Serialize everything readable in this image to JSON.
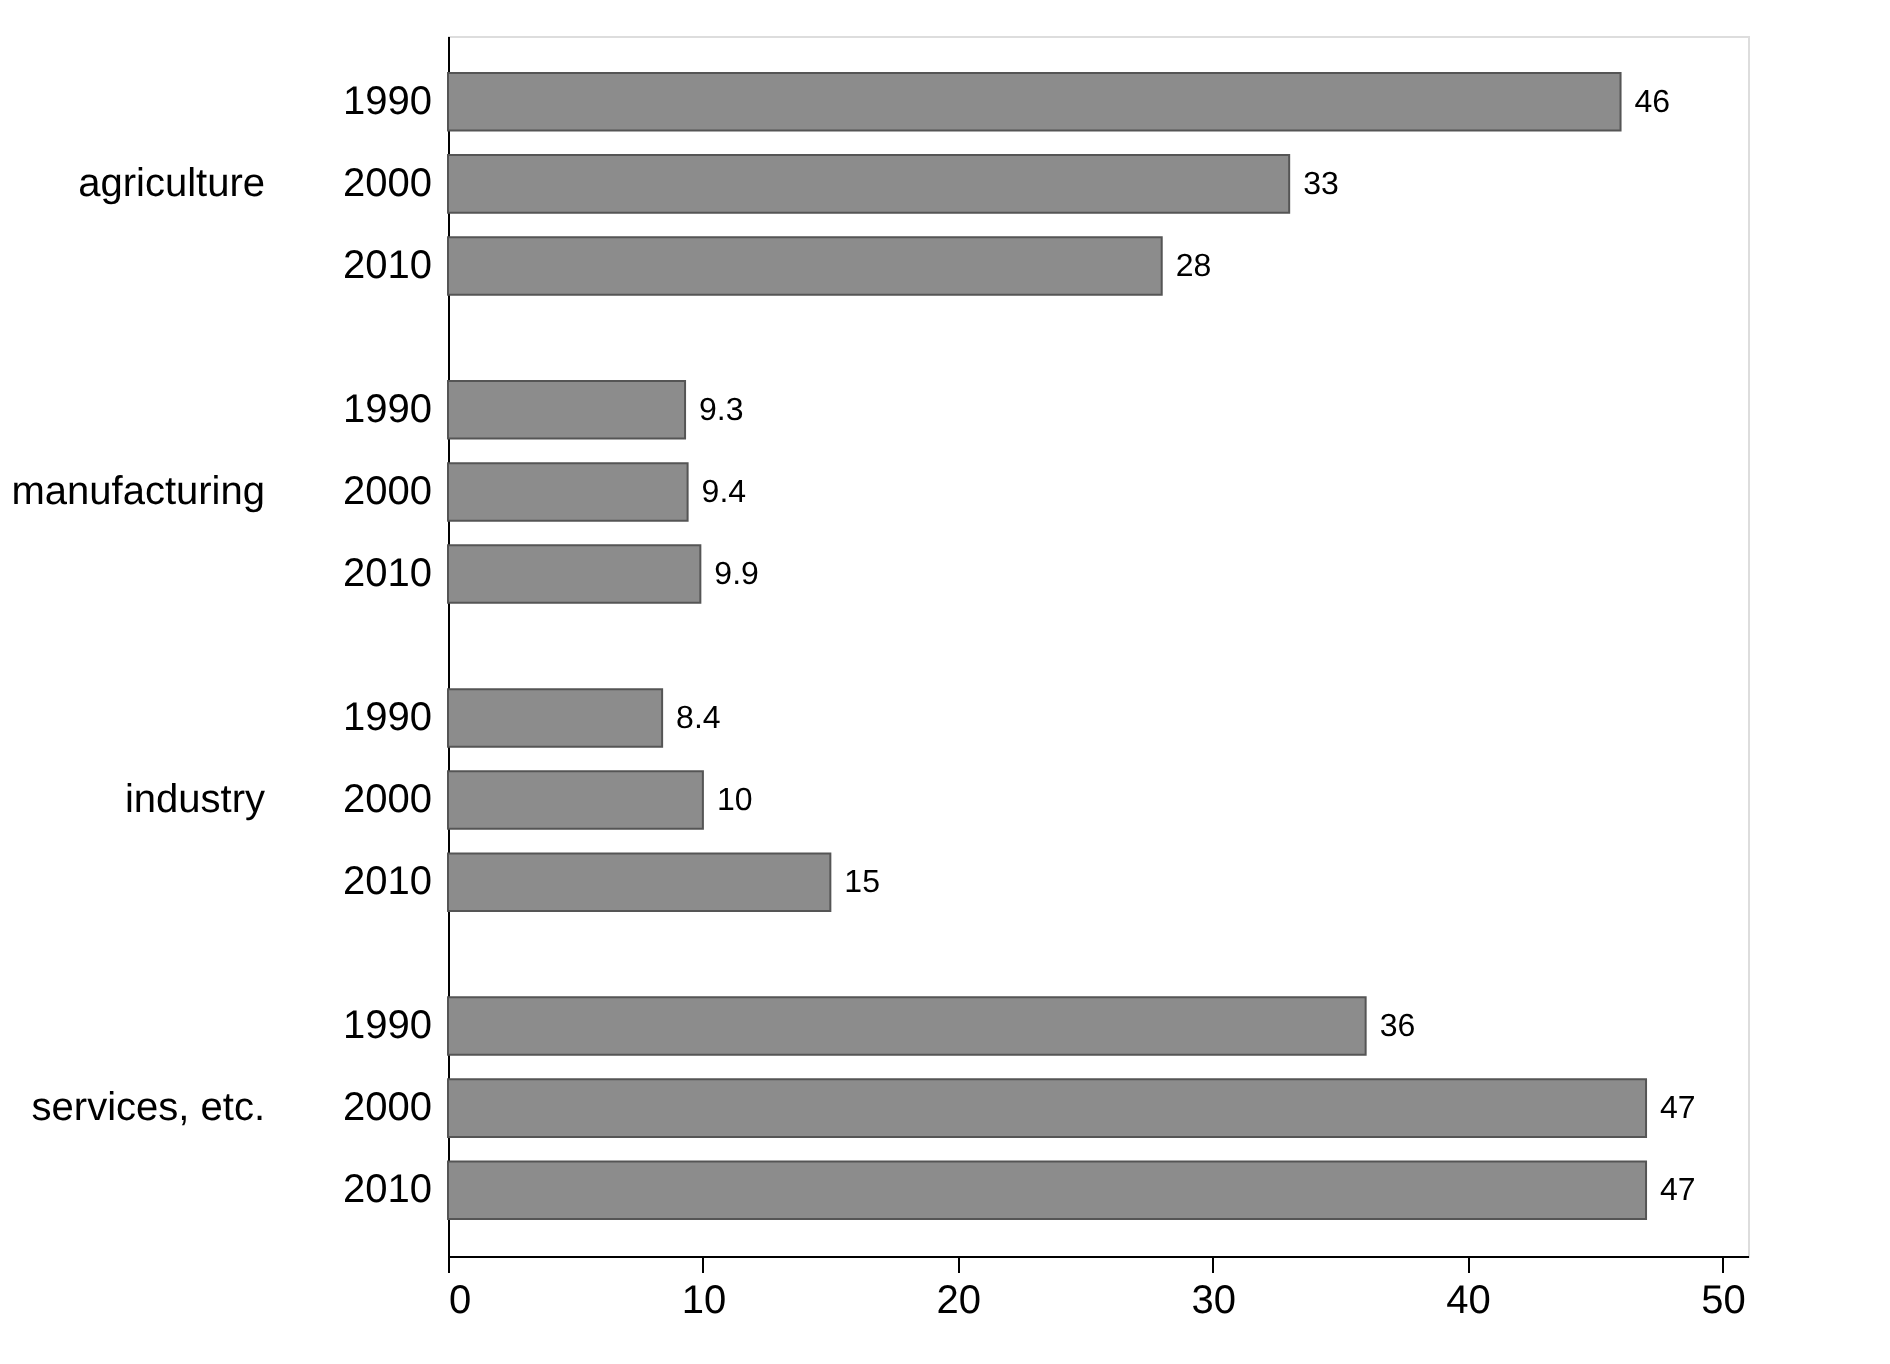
{
  "chart_data": {
    "type": "bar",
    "orientation": "horizontal",
    "categories": [
      "agriculture",
      "manufacturing",
      "industry",
      "services, etc."
    ],
    "series": [
      {
        "name": "1990",
        "color": "#8c8c8c",
        "values": [
          46,
          9.3,
          8.4,
          36
        ]
      },
      {
        "name": "2000",
        "color": "#8c8c8c",
        "values": [
          33,
          9.4,
          10,
          47
        ]
      },
      {
        "name": "2010",
        "color": "#8c8c8c",
        "values": [
          28,
          9.9,
          15,
          47
        ]
      }
    ],
    "xlim": [
      0,
      51
    ],
    "xticks": [
      0,
      10,
      20,
      30,
      40,
      50
    ],
    "data_labels": true,
    "legend": false,
    "grid": false
  }
}
